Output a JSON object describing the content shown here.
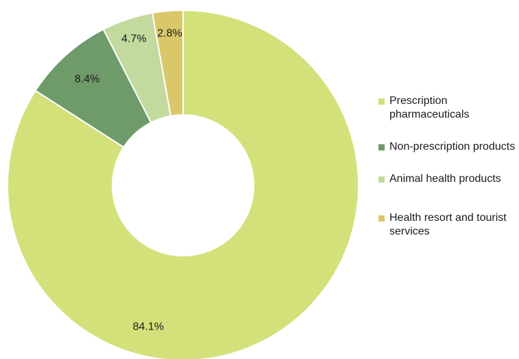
{
  "chart_data": {
    "type": "pie",
    "donut": true,
    "labels": [
      "Prescription pharmaceuticals",
      "Non-prescription products",
      "Animal health products",
      "Health resort and tourist services"
    ],
    "values": [
      84.1,
      8.4,
      4.7,
      2.8
    ],
    "value_labels": [
      "84.1%",
      "8.4%",
      "4.7%",
      "2.8%"
    ],
    "colors": [
      "#d4e17a",
      "#6f9a6a",
      "#c2da9e",
      "#d9c76a"
    ],
    "start_angle_deg": 0,
    "direction": "clockwise",
    "legend_position": "right"
  },
  "legend": {
    "items": [
      {
        "label": "Prescription pharmaceuticals",
        "color": "#d4e17a"
      },
      {
        "label": "Non-prescription products",
        "color": "#6f9a6a"
      },
      {
        "label": "Animal health products",
        "color": "#c2da9e"
      },
      {
        "label": "Health resort and tourist services",
        "color": "#d9c76a"
      }
    ]
  }
}
